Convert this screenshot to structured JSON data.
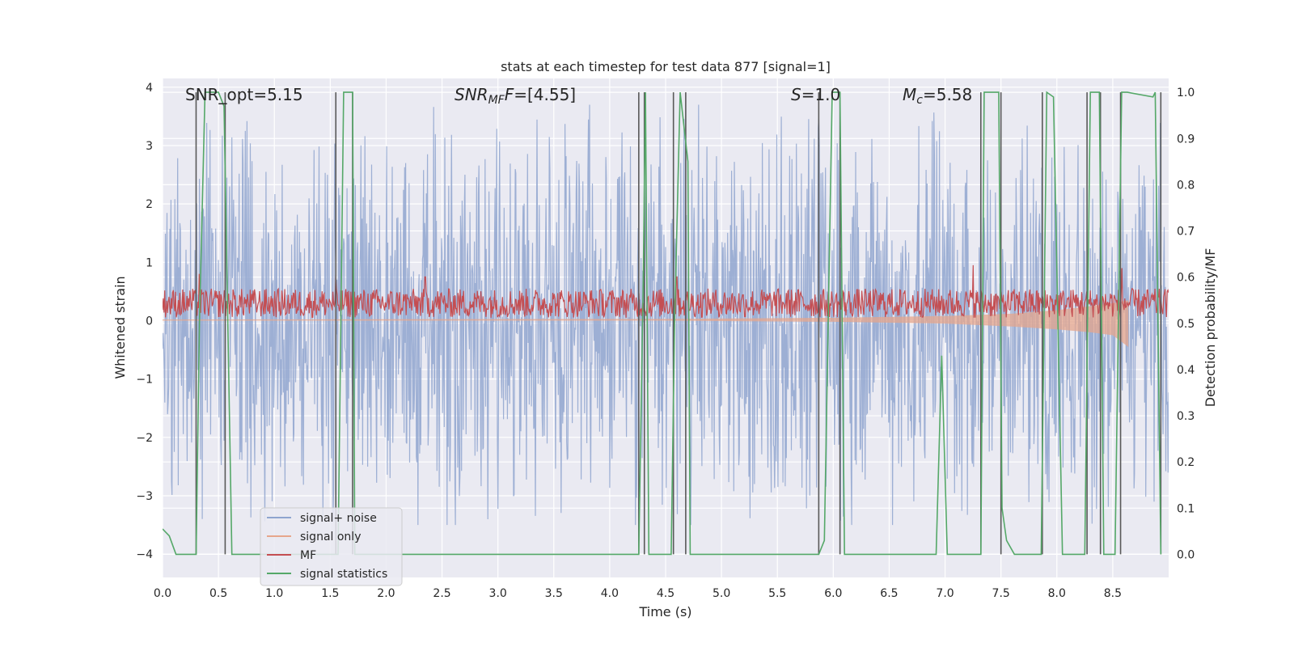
{
  "chart_data": {
    "type": "line",
    "title": "stats at each timestep for test data 877 [signal=1]",
    "xlabel": "Time (s)",
    "ylabel": "Whitened strain",
    "y2label": "Detection probability/MF",
    "xlim": [
      0.0,
      9.0
    ],
    "ylim": [
      -4.4,
      4.15
    ],
    "y2lim": [
      -0.05,
      1.03
    ],
    "xticks": [
      0.0,
      0.5,
      1.0,
      1.5,
      2.0,
      2.5,
      3.0,
      3.5,
      4.0,
      4.5,
      5.0,
      5.5,
      6.0,
      6.5,
      7.0,
      7.5,
      8.0,
      8.5
    ],
    "xtick_labels": [
      "0.0",
      "0.5",
      "1.0",
      "1.5",
      "2.0",
      "2.5",
      "3.0",
      "3.5",
      "4.0",
      "4.5",
      "5.0",
      "5.5",
      "6.0",
      "6.5",
      "7.0",
      "7.5",
      "8.0",
      "8.5"
    ],
    "yticks": [
      -4,
      -3,
      -2,
      -1,
      0,
      1,
      2,
      3,
      4
    ],
    "ytick_labels": [
      "−4",
      "−3",
      "−2",
      "−1",
      "0",
      "1",
      "2",
      "3",
      "4"
    ],
    "y2ticks": [
      0.0,
      0.1,
      0.2,
      0.3,
      0.4,
      0.5,
      0.6,
      0.7,
      0.8,
      0.9,
      1.0
    ],
    "y2tick_labels": [
      "0.0",
      "0.1",
      "0.2",
      "0.3",
      "0.4",
      "0.5",
      "0.6",
      "0.7",
      "0.8",
      "0.9",
      "1.0"
    ],
    "annotations": [
      {
        "id": "snr-opt",
        "parts": [
          {
            "text": "SNR_opt=5.15",
            "italic": false
          }
        ]
      },
      {
        "id": "snr-mf",
        "parts": [
          {
            "text": "SNR",
            "italic": true
          },
          {
            "text": "MF",
            "italic": true,
            "sub": true
          },
          {
            "text": "F",
            "italic": true
          },
          {
            "text": "=[4.55]",
            "italic": false
          }
        ]
      },
      {
        "id": "s-value",
        "parts": [
          {
            "text": "S",
            "italic": true
          },
          {
            "text": "=1.0",
            "italic": false
          }
        ]
      },
      {
        "id": "mc-value",
        "parts": [
          {
            "text": "M",
            "italic": true
          },
          {
            "text": "c",
            "italic": true,
            "sub": true
          },
          {
            "text": "=5.58",
            "italic": false
          }
        ]
      }
    ],
    "legend": {
      "position": "lower-left",
      "entries": [
        {
          "label": "signal+ noise",
          "color": "#8fa5cf"
        },
        {
          "label": "signal only",
          "color": "#e6a68c"
        },
        {
          "label": "MF",
          "color": "#c44e52"
        },
        {
          "label": "signal statistics",
          "color": "#55a868"
        }
      ]
    },
    "noise": {
      "name": "signal+ noise",
      "color": "#8fa5cf",
      "typical_range": [
        -2.3,
        2.3
      ],
      "peak_max": 3.7,
      "peak_min": -3.5
    },
    "signal_only": {
      "name": "signal only",
      "color": "#e6a68c",
      "x": [
        0.0,
        4.5,
        6.0,
        7.0,
        7.6,
        8.0,
        8.3,
        8.5,
        8.64
      ],
      "upper": [
        0.02,
        0.03,
        0.05,
        0.08,
        0.12,
        0.18,
        0.25,
        0.3,
        0.35
      ],
      "lower": [
        0.0,
        0.0,
        -0.02,
        -0.05,
        -0.1,
        -0.15,
        -0.2,
        -0.25,
        -0.45
      ]
    },
    "mf": {
      "name": "MF",
      "color": "#c44e52",
      "center": 0.28,
      "band": [
        0.05,
        0.55
      ],
      "spikes": [
        {
          "x": 0.33,
          "y": 0.8
        },
        {
          "x": 1.55,
          "y": 0.8
        },
        {
          "x": 2.35,
          "y": 0.75
        },
        {
          "x": 4.6,
          "y": 0.75
        },
        {
          "x": 7.25,
          "y": 0.95
        },
        {
          "x": 8.58,
          "y": 0.9
        }
      ]
    },
    "signal_statistics": {
      "name": "signal statistics",
      "color": "#55a868",
      "x": [
        0.0,
        0.06,
        0.12,
        0.3,
        0.33,
        0.38,
        0.5,
        0.55,
        0.62,
        1.57,
        1.62,
        1.7,
        1.72,
        4.26,
        4.3,
        4.32,
        4.35,
        4.55,
        4.58,
        4.63,
        4.7,
        4.72,
        5.87,
        5.92,
        5.99,
        6.06,
        6.1,
        6.92,
        6.97,
        7.02,
        7.32,
        7.35,
        7.48,
        7.51,
        7.55,
        7.62,
        7.86,
        7.91,
        7.97,
        8.05,
        8.25,
        8.3,
        8.38,
        8.42,
        8.52,
        8.58,
        8.63,
        8.86,
        8.88,
        8.93
      ],
      "y": [
        0.055,
        0.04,
        0.0,
        0.0,
        0.5,
        1.0,
        1.0,
        0.97,
        0.0,
        0.0,
        1.0,
        1.0,
        0.0,
        0.0,
        0.6,
        1.0,
        0.0,
        0.0,
        0.5,
        1.0,
        0.85,
        0.0,
        0.0,
        0.03,
        1.0,
        1.0,
        0.0,
        0.0,
        0.43,
        0.0,
        0.0,
        1.0,
        1.0,
        0.1,
        0.03,
        0.0,
        0.0,
        1.0,
        0.99,
        0.0,
        0.0,
        1.0,
        1.0,
        0.0,
        0.0,
        1.0,
        1.0,
        0.99,
        1.0,
        0.0
      ]
    },
    "vertical_lines": {
      "color": "#595959",
      "x": [
        0.3,
        0.56,
        1.55,
        1.7,
        4.26,
        4.31,
        4.57,
        4.68,
        5.87,
        6.06,
        7.32,
        7.5,
        7.87,
        8.27,
        8.39,
        8.57,
        8.93
      ]
    }
  }
}
